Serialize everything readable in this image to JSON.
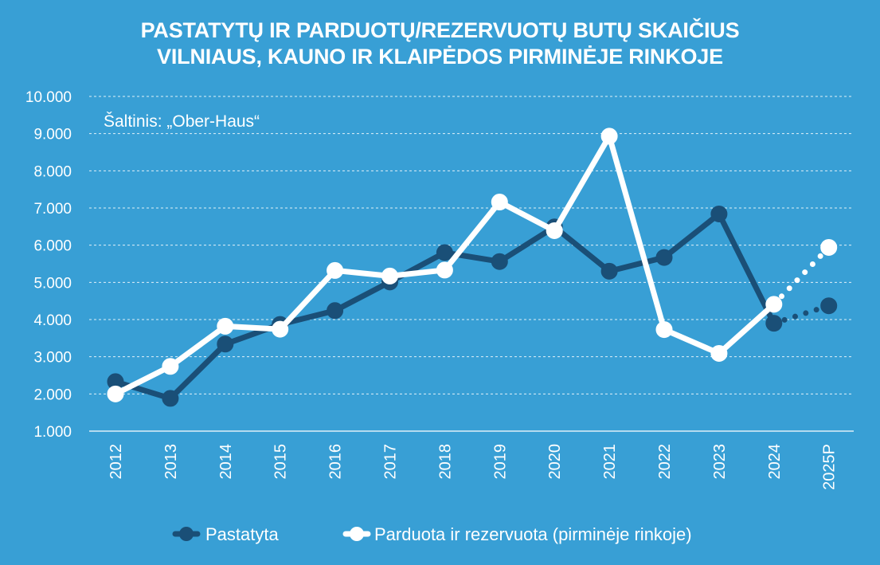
{
  "title_line1": "PASTATYTŲ IR PARDUOTŲ/REZERVUOTŲ BUTŲ SKAIČIUS",
  "title_line2": "VILNIAUS, KAUNO IR KLAIPĖDOS PIRMINĖJE RINKOJE",
  "source": "Šaltinis: „Ober-Haus“",
  "colors": {
    "background": "#389fd5",
    "built": "#1a4f77",
    "sold": "#ffffff",
    "grid": "#ffffff"
  },
  "chart_data": {
    "type": "line",
    "categories": [
      "2012",
      "2013",
      "2014",
      "2015",
      "2016",
      "2017",
      "2018",
      "2019",
      "2020",
      "2021",
      "2022",
      "2023",
      "2024",
      "2025P"
    ],
    "y_ticks": [
      "1.000",
      "2.000",
      "3.000",
      "4.000",
      "5.000",
      "6.000",
      "7.000",
      "8.000",
      "9.000",
      "10.000"
    ],
    "ylim": [
      1000,
      10000
    ],
    "grid": true,
    "legend_position": "bottom",
    "projected_from": "2024",
    "series": [
      {
        "name": "Pastatyta",
        "color": "#1a4f77",
        "values": [
          2330,
          1880,
          3340,
          3870,
          4240,
          5010,
          5800,
          5560,
          6490,
          5300,
          5670,
          6840,
          3900,
          4370
        ]
      },
      {
        "name": "Parduota ir rezervuota (pirminėje rinkoje)",
        "color": "#ffffff",
        "values": [
          2000,
          2740,
          3820,
          3740,
          5320,
          5170,
          5330,
          7160,
          6390,
          8930,
          3730,
          3090,
          4410,
          5940
        ]
      }
    ]
  }
}
